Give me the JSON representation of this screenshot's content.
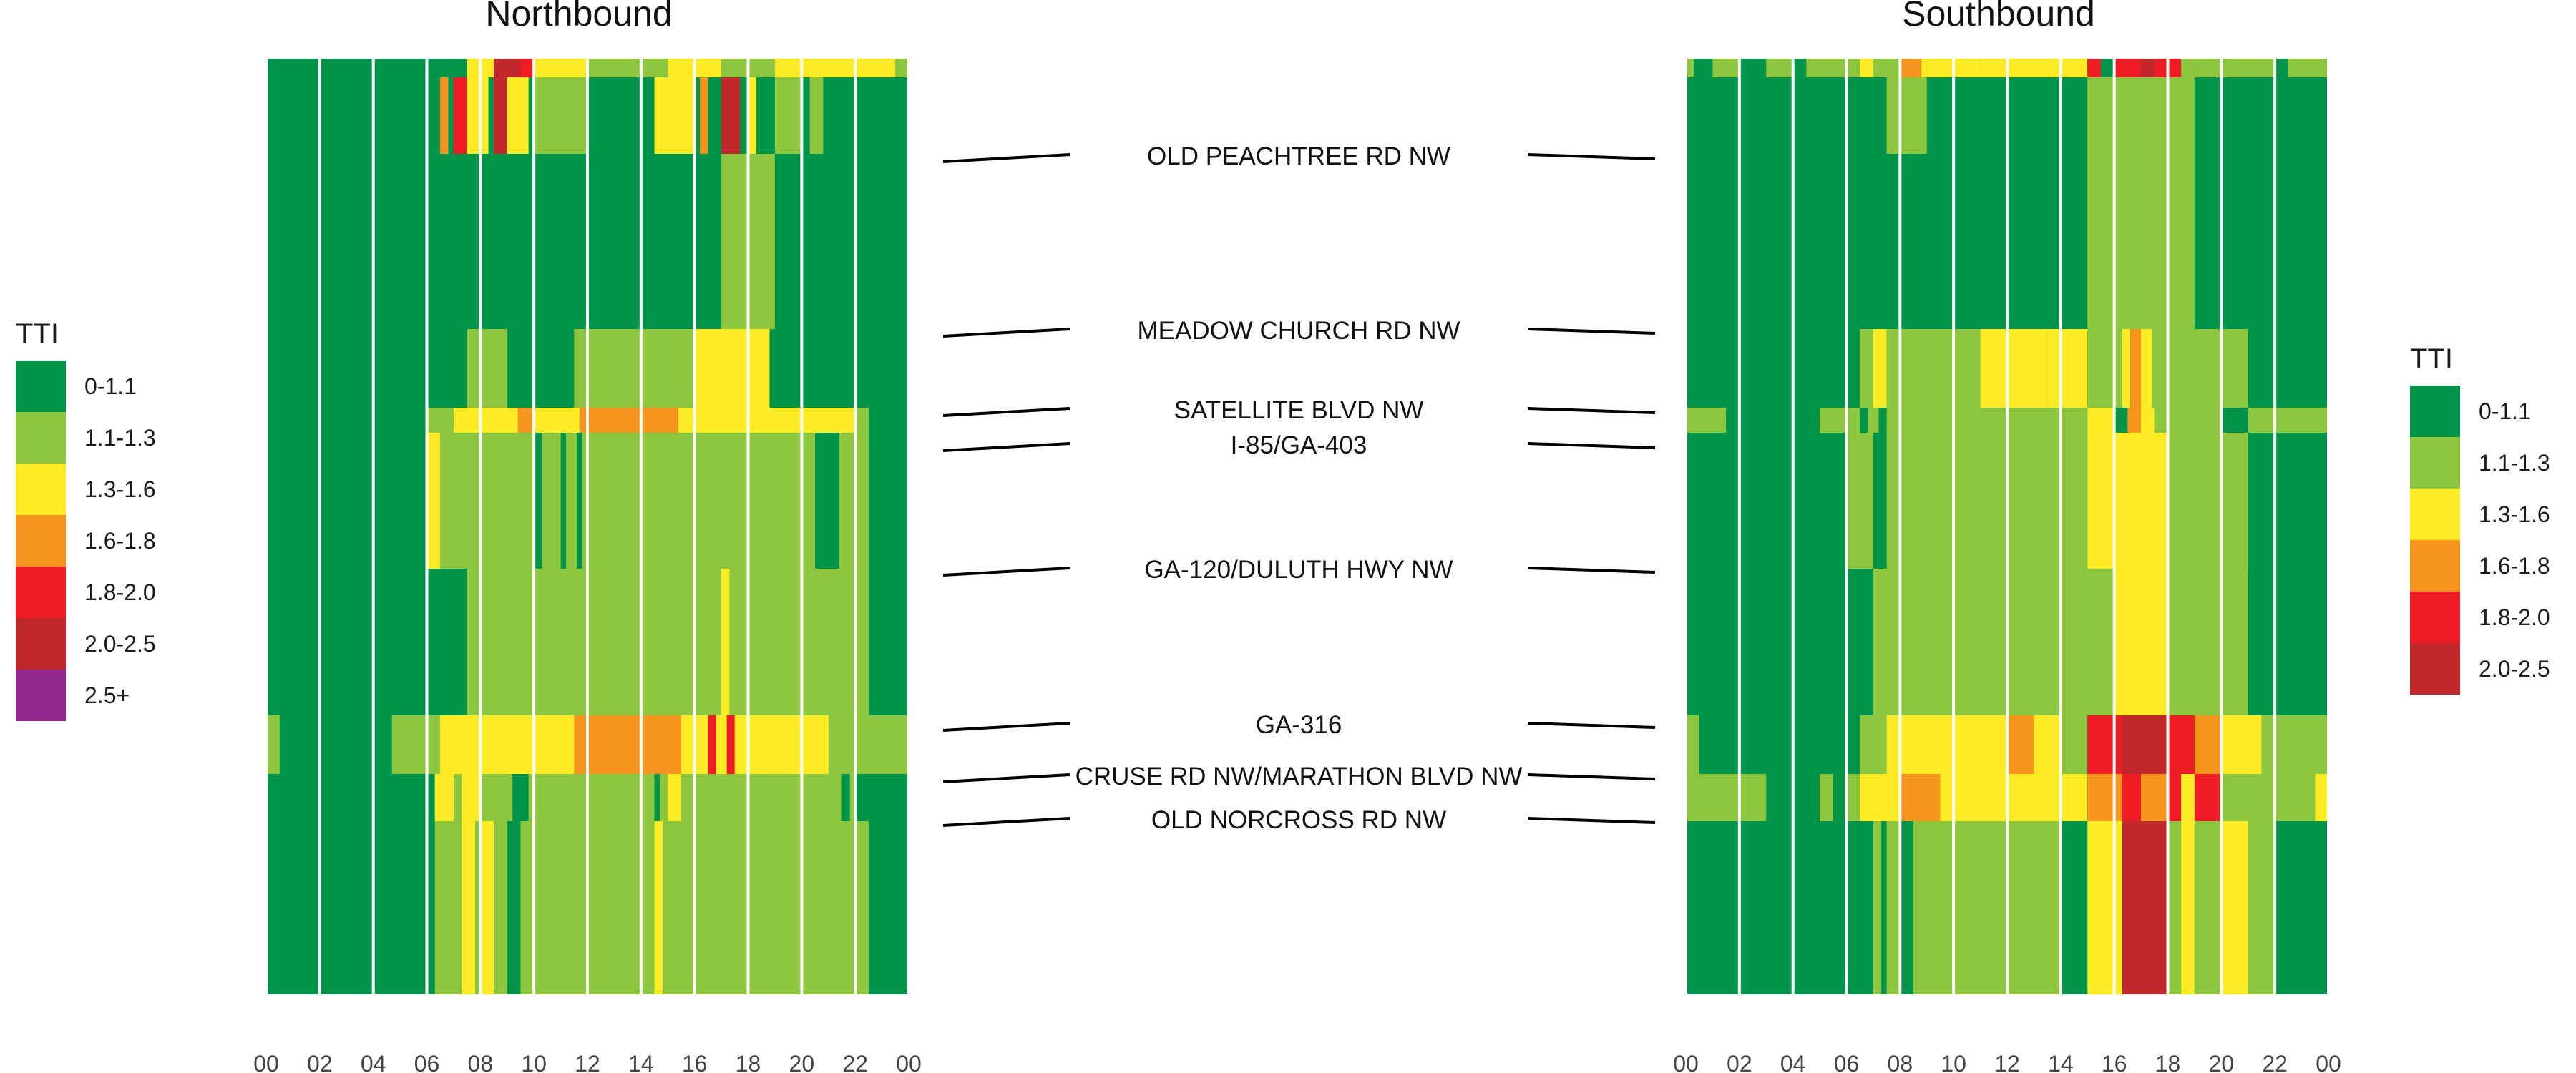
{
  "chart_data": {
    "type": "heatmap",
    "metric": "TTI",
    "x_ticks": [
      "00",
      "02",
      "04",
      "06",
      "08",
      "10",
      "12",
      "14",
      "16",
      "18",
      "20",
      "22",
      "00"
    ],
    "x_unit_per_tick": "2 hours",
    "rows_top_to_bottom": "road segments along corridor",
    "legend": {
      "title": "TTI",
      "bins": [
        {
          "label": "0-1.1",
          "color": "#00934A"
        },
        {
          "label": "1.1-1.3",
          "color": "#8CC63F"
        },
        {
          "label": "1.3-1.6",
          "color": "#FDEC23"
        },
        {
          "label": "1.6-1.8",
          "color": "#F7941E"
        },
        {
          "label": "1.8-2.0",
          "color": "#EE1C25"
        },
        {
          "label": "2.0-2.5",
          "color": "#C1272D"
        },
        {
          "label": "2.5+",
          "color": "#92278F"
        }
      ]
    },
    "landmarks": [
      {
        "label": "OLD PEACHTREE RD NW"
      },
      {
        "label": "MEADOW CHURCH RD NW"
      },
      {
        "label": "SATELLITE BLVD NW"
      },
      {
        "label": "I-85/GA-403"
      },
      {
        "label": "GA-120/DULUTH HWY NW"
      },
      {
        "label": "GA-316"
      },
      {
        "label": "CRUSE RD NW/MARATHON BLVD NW"
      },
      {
        "label": "OLD NORCROSS RD NW"
      }
    ],
    "panels": [
      {
        "title": "Northbound",
        "legend_bins_shown": 7,
        "bands": [
          {
            "base": 0,
            "cells": [
              [
                7.5,
                8.5,
                2
              ],
              [
                8.5,
                9.5,
                5
              ],
              [
                9.5,
                10,
                4
              ],
              [
                10,
                12,
                2
              ],
              [
                12,
                15,
                1
              ],
              [
                15,
                17,
                2
              ],
              [
                17,
                19,
                1
              ],
              [
                19,
                23.5,
                2
              ],
              [
                23.5,
                24,
                1
              ]
            ]
          },
          {
            "base": 0,
            "cells": [
              [
                6.5,
                6.8,
                3
              ],
              [
                7,
                7.5,
                4
              ],
              [
                7.5,
                8.3,
                2
              ],
              [
                8.5,
                9,
                5
              ],
              [
                9,
                9.8,
                2
              ],
              [
                10,
                12,
                1
              ],
              [
                14.5,
                16,
                2
              ],
              [
                16.2,
                16.5,
                3
              ],
              [
                17,
                17.7,
                5
              ],
              [
                18,
                18.3,
                2
              ],
              [
                19,
                20,
                1
              ],
              [
                20.3,
                20.8,
                1
              ]
            ]
          },
          {
            "base": 0,
            "cells": [
              [
                17,
                19,
                1
              ]
            ]
          },
          {
            "base": 0,
            "cells": [
              [
                7.5,
                9,
                1
              ],
              [
                11.5,
                16,
                1
              ],
              [
                16,
                18.8,
                2
              ]
            ]
          },
          {
            "base": 1,
            "cells": [
              [
                0,
                6,
                0
              ],
              [
                6,
                7,
                1
              ],
              [
                7,
                8.3,
                2
              ],
              [
                8.3,
                9.4,
                2
              ],
              [
                9.4,
                10,
                3
              ],
              [
                10,
                11.7,
                2
              ],
              [
                11.7,
                14,
                3
              ],
              [
                14,
                15.4,
                3
              ],
              [
                15.4,
                22,
                2
              ],
              [
                22,
                22.5,
                1
              ],
              [
                22.5,
                24,
                0
              ]
            ]
          },
          {
            "base": 1,
            "cells": [
              [
                0,
                6,
                0
              ],
              [
                6,
                6.5,
                2
              ],
              [
                6.5,
                10,
                1
              ],
              [
                10,
                10.3,
                0
              ],
              [
                11,
                11.2,
                0
              ],
              [
                11.6,
                11.8,
                0
              ],
              [
                20.5,
                21.4,
                0
              ],
              [
                22.5,
                24,
                0
              ]
            ]
          },
          {
            "base": 1,
            "cells": [
              [
                0,
                7.5,
                0
              ],
              [
                17,
                17.3,
                2
              ],
              [
                22.5,
                24,
                0
              ]
            ]
          },
          {
            "base": 2,
            "cells": [
              [
                0,
                0.5,
                1
              ],
              [
                0.5,
                4.7,
                0
              ],
              [
                4.7,
                6.5,
                1
              ],
              [
                6.5,
                11.5,
                2
              ],
              [
                11.5,
                14,
                3
              ],
              [
                14,
                15.5,
                3
              ],
              [
                15.5,
                17.5,
                2
              ],
              [
                16.5,
                16.8,
                4
              ],
              [
                17.2,
                17.5,
                4
              ],
              [
                17.5,
                21,
                2
              ],
              [
                21,
                24,
                1
              ]
            ]
          },
          {
            "base": 1,
            "cells": [
              [
                0,
                6.3,
                0
              ],
              [
                6.3,
                7,
                2
              ],
              [
                7.3,
                8,
                2
              ],
              [
                9.2,
                9.8,
                0
              ],
              [
                15,
                15.5,
                2
              ],
              [
                14.5,
                14.7,
                0
              ],
              [
                21.5,
                21.8,
                0
              ],
              [
                22,
                24,
                0
              ]
            ]
          },
          {
            "base": 1,
            "cells": [
              [
                0,
                6.3,
                0
              ],
              [
                7.3,
                7.8,
                2
              ],
              [
                8,
                8.5,
                2
              ],
              [
                9,
                9.5,
                0
              ],
              [
                14.5,
                14.8,
                2
              ],
              [
                22.5,
                24,
                0
              ]
            ]
          }
        ]
      },
      {
        "title": "Southbound",
        "legend_bins_shown": 6,
        "bands": [
          {
            "base": 0,
            "cells": [
              [
                0,
                0.3,
                1
              ],
              [
                1,
                2,
                1
              ],
              [
                3,
                4,
                1
              ],
              [
                4.5,
                6.5,
                1
              ],
              [
                6.5,
                7,
                2
              ],
              [
                7,
                8,
                1
              ],
              [
                8,
                8.8,
                3
              ],
              [
                8.8,
                9,
                2
              ],
              [
                9,
                11,
                2
              ],
              [
                11,
                15,
                2
              ],
              [
                15,
                15.5,
                4
              ],
              [
                16,
                17,
                4
              ],
              [
                17,
                17.5,
                5
              ],
              [
                17.5,
                18.5,
                4
              ],
              [
                18.5,
                19,
                1
              ],
              [
                19,
                22,
                1
              ],
              [
                22.5,
                24,
                1
              ]
            ]
          },
          {
            "base": 0,
            "cells": [
              [
                7.5,
                9,
                1
              ],
              [
                15,
                19,
                1
              ]
            ]
          },
          {
            "base": 0,
            "cells": [
              [
                15,
                19,
                1
              ]
            ]
          },
          {
            "base": 0,
            "cells": [
              [
                6.5,
                7,
                1
              ],
              [
                7,
                7.5,
                2
              ],
              [
                7.5,
                11,
                1
              ],
              [
                11,
                13.5,
                2
              ],
              [
                13.5,
                15,
                2
              ],
              [
                15,
                16.3,
                1
              ],
              [
                16.3,
                16.6,
                2
              ],
              [
                16.6,
                17,
                3
              ],
              [
                17,
                17.4,
                2
              ],
              [
                17.4,
                21,
                1
              ]
            ]
          },
          {
            "base": 0,
            "cells": [
              [
                0,
                1.5,
                1
              ],
              [
                5,
                6.5,
                1
              ],
              [
                6.8,
                7.2,
                1
              ],
              [
                7.5,
                15,
                1
              ],
              [
                15,
                16,
                2
              ],
              [
                16.5,
                17,
                3
              ],
              [
                17,
                17.5,
                2
              ],
              [
                17.5,
                20,
                1
              ],
              [
                20,
                21,
                0
              ],
              [
                21,
                24,
                1
              ]
            ]
          },
          {
            "base": 0,
            "cells": [
              [
                6,
                7,
                1
              ],
              [
                7.5,
                14,
                1
              ],
              [
                14,
                15,
                1
              ],
              [
                15,
                18,
                2
              ],
              [
                18,
                21,
                1
              ],
              [
                21,
                22,
                0
              ]
            ]
          },
          {
            "base": 0,
            "cells": [
              [
                7,
                16,
                1
              ],
              [
                16,
                18,
                2
              ],
              [
                18,
                21,
                1
              ]
            ]
          },
          {
            "base": 0,
            "cells": [
              [
                0,
                0.5,
                1
              ],
              [
                6.5,
                7.5,
                1
              ],
              [
                7.5,
                12,
                2
              ],
              [
                12,
                13,
                3
              ],
              [
                13,
                14,
                2
              ],
              [
                14,
                15,
                1
              ],
              [
                15,
                16.3,
                4
              ],
              [
                16.3,
                18,
                5
              ],
              [
                18,
                19,
                4
              ],
              [
                19,
                20,
                3
              ],
              [
                20,
                21.5,
                2
              ],
              [
                21.5,
                24,
                1
              ]
            ]
          },
          {
            "base": 0,
            "cells": [
              [
                0,
                3,
                1
              ],
              [
                5,
                5.5,
                1
              ],
              [
                6,
                6.5,
                1
              ],
              [
                6.5,
                8,
                2
              ],
              [
                8,
                9.5,
                3
              ],
              [
                9.5,
                15,
                2
              ],
              [
                15,
                16.3,
                3
              ],
              [
                16.3,
                17,
                4
              ],
              [
                17,
                18,
                3
              ],
              [
                18,
                18.5,
                4
              ],
              [
                18.5,
                19,
                2
              ],
              [
                19,
                20,
                4
              ],
              [
                20,
                23.5,
                1
              ],
              [
                23.5,
                24,
                2
              ]
            ]
          },
          {
            "base": 0,
            "cells": [
              [
                7,
                7.3,
                1
              ],
              [
                7.5,
                8,
                1
              ],
              [
                8.5,
                14,
                1
              ],
              [
                15,
                16.3,
                2
              ],
              [
                16.3,
                18,
                5
              ],
              [
                18,
                18.5,
                1
              ],
              [
                18.5,
                19,
                2
              ],
              [
                19,
                20,
                1
              ],
              [
                20,
                21,
                2
              ],
              [
                21,
                22,
                1
              ]
            ]
          }
        ]
      }
    ]
  }
}
